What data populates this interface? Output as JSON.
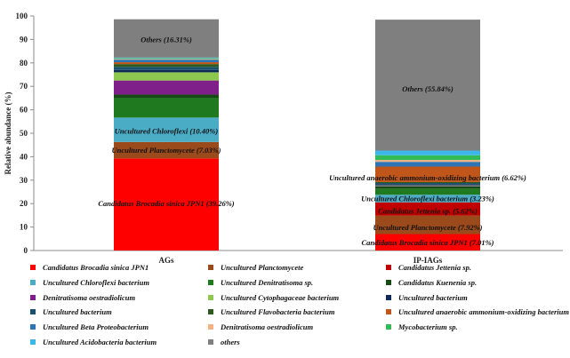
{
  "chart_data": {
    "type": "bar",
    "stacked": true,
    "ylabel": "Relative abundance (%)",
    "xlabel": "",
    "ylim": [
      0,
      100
    ],
    "yticks": [
      0,
      10,
      20,
      30,
      40,
      50,
      60,
      70,
      80,
      90,
      100
    ],
    "grid": false,
    "legend_position": "bottom",
    "categories": [
      "AGs",
      "IP-IAGs"
    ],
    "series": [
      {
        "name": "Candidatus Brocadia sinica JPN1",
        "color": "#ff0000",
        "values": [
          39.26,
          7.01
        ]
      },
      {
        "name": "Uncultured Planctomycete",
        "color": "#9b4a1c",
        "values": [
          7.03,
          7.92
        ]
      },
      {
        "name": "Candidatus Jettenia sp.",
        "color": "#c00000",
        "values": [
          0,
          5.62
        ]
      },
      {
        "name": "Uncultured Chloroflexi bacterium",
        "color": "#4bacc6",
        "values": [
          10.4,
          3.23
        ]
      },
      {
        "name": "Uncultured Denitratisoma sp.",
        "color": "#1f7a1f",
        "values": [
          8.3,
          2.6
        ]
      },
      {
        "name": "Candidatus Kuenenia sp.",
        "color": "#154a15",
        "values": [
          1.5,
          1.0
        ]
      },
      {
        "name": "Denitratisoma oestradiolicum",
        "color": "#7f1f8a",
        "values": [
          6.0,
          0.2
        ]
      },
      {
        "name": "Uncultured Cytophagaceae bacterium",
        "color": "#8fc84f",
        "values": [
          3.5,
          0.2
        ]
      },
      {
        "name": "Uncultured bacterium",
        "color": "#0f2a5a",
        "values": [
          1.0,
          0.5
        ]
      },
      {
        "name": "Uncultured bacterium",
        "color": "#17516b",
        "values": [
          1.3,
          0.5
        ]
      },
      {
        "name": "Uncultured Flavobacteria bacterium",
        "color": "#2d5a1e",
        "values": [
          1.2,
          0.4
        ]
      },
      {
        "name": "Uncultured anaerobic ammonium-oxidizing bacterium",
        "color": "#c0561a",
        "values": [
          0.8,
          6.62
        ]
      },
      {
        "name": "Uncultured Beta Proteobacterium",
        "color": "#2e75b6",
        "values": [
          1.1,
          2.0
        ]
      },
      {
        "name": "Denitratisoma oestradiolicum",
        "color": "#f4b183",
        "values": [
          0.3,
          0.8
        ]
      },
      {
        "name": "Mycobacterium sp.",
        "color": "#33bb55",
        "values": [
          0.3,
          2.0
        ]
      },
      {
        "name": "Uncultured Acidobacteria bacterium",
        "color": "#3cb7e8",
        "values": [
          0.3,
          2.0
        ]
      },
      {
        "name": "others",
        "color": "#7f7f7f",
        "values": [
          16.31,
          55.84
        ]
      }
    ],
    "annotations": [
      {
        "text": "Others (16.31%)",
        "category": "AGs",
        "y": 90
      },
      {
        "text": "Uncultured Chloroflexi (10.40%)",
        "category": "AGs",
        "y": 51
      },
      {
        "text": "Uncultured Planctomycete (7.03%)",
        "category": "AGs",
        "y": 42.8
      },
      {
        "text": "Candidatus Brocadia sinica JPN1 (39.26%)",
        "category": "AGs",
        "y": 20
      },
      {
        "text": "Others (55.84%)",
        "category": "IP-IAGs",
        "y": 69
      },
      {
        "text": "Uncultured anaerobic ammonium-oxidizing bacterium (6.62%)",
        "category": "IP-IAGs",
        "y": 31
      },
      {
        "text": "Uncultured Chloroflexi bacterium (3.23%)",
        "category": "IP-IAGs",
        "y": 22.2
      },
      {
        "text": "Candidatus Jettenia sp. (5.62%)",
        "category": "IP-IAGs",
        "y": 16.8
      },
      {
        "text": "Uncultured Planctomycete (7.92%)",
        "category": "IP-IAGs",
        "y": 9.8
      },
      {
        "text": "Candidatus Brocadia sinica JPN1 (7.01%)",
        "category": "IP-IAGs",
        "y": 3.5
      }
    ]
  }
}
